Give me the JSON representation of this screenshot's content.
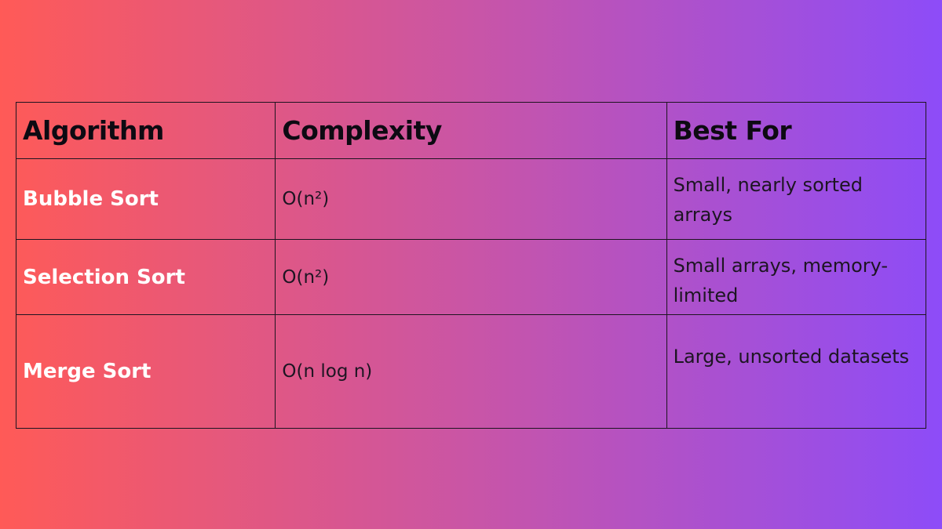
{
  "table": {
    "headers": [
      "Algorithm",
      "Complexity",
      "Best For"
    ],
    "rows": [
      {
        "algorithm": "Bubble Sort",
        "complexity": "O(n²)",
        "best_for": "Small, nearly sorted arrays"
      },
      {
        "algorithm": "Selection Sort",
        "complexity": "O(n²)",
        "best_for": "Small arrays, memory-limited"
      },
      {
        "algorithm": "Merge Sort",
        "complexity": "O(n log n)",
        "best_for": "Large, unsorted datasets"
      }
    ]
  },
  "colors": {
    "gradient_start": "#ff5a57",
    "gradient_mid": "#c955a6",
    "gradient_end": "#8d4cf8",
    "border": "#1e1420",
    "header_text": "#0d0a12",
    "algorithm_text": "#ffffff"
  }
}
